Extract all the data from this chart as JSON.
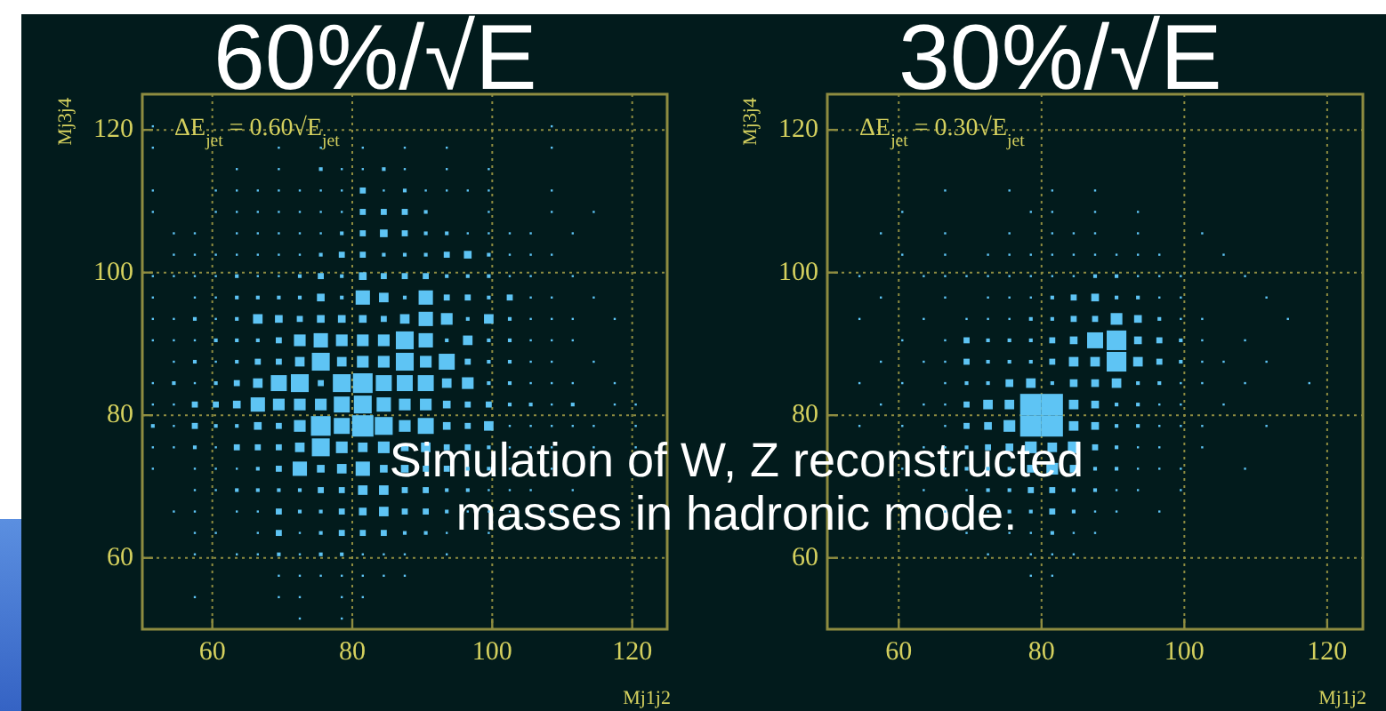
{
  "chart_data": [
    {
      "type": "bubble",
      "title": "60%/√E",
      "annotations": [
        "ΔE$_{jet}$ = 0.60√E$_{jet}$",
        "Simulation of W, Z reconstructed masses in hadronic mode."
      ],
      "xlabel": "Mj1j2",
      "ylabel": "Mj3j4",
      "xlim": [
        50,
        125
      ],
      "ylim": [
        50,
        125
      ],
      "xticks": [
        60,
        80,
        100,
        120
      ],
      "yticks": [
        60,
        80,
        100,
        120
      ],
      "grid": true,
      "marker": "square",
      "series": [
        {
          "color": "#5ec4f4",
          "x": [
            51.5,
            108.5,
            51.5,
            69.5,
            75.5,
            81.5,
            87.5,
            93.5,
            108.5,
            63.5,
            69.5,
            75.5,
            78.5,
            81.5,
            84.5,
            87.5,
            93.5,
            99.5,
            51.5,
            60.5,
            63.5,
            66.5,
            69.5,
            72.5,
            75.5,
            78.5,
            81.5,
            84.5,
            87.5,
            90.5,
            93.5,
            96.5,
            99.5,
            108.5,
            51.5,
            60.5,
            63.5,
            66.5,
            69.5,
            72.5,
            75.5,
            78.5,
            81.5,
            84.5,
            87.5,
            90.5,
            99.5,
            108.5,
            114.5,
            54.5,
            57.5,
            63.5,
            66.5,
            69.5,
            72.5,
            75.5,
            78.5,
            81.5,
            84.5,
            87.5,
            90.5,
            93.5,
            96.5,
            99.5,
            102.5,
            105.5,
            111.5,
            54.5,
            57.5,
            60.5,
            63.5,
            66.5,
            69.5,
            72.5,
            75.5,
            78.5,
            81.5,
            84.5,
            87.5,
            90.5,
            93.5,
            96.5,
            99.5,
            102.5,
            105.5,
            108.5,
            51.5,
            54.5,
            57.5,
            60.5,
            63.5,
            66.5,
            69.5,
            72.5,
            75.5,
            78.5,
            81.5,
            84.5,
            87.5,
            90.5,
            93.5,
            96.5,
            99.5,
            102.5,
            105.5,
            111.5,
            51.5,
            57.5,
            60.5,
            63.5,
            66.5,
            69.5,
            72.5,
            75.5,
            78.5,
            81.5,
            84.5,
            87.5,
            90.5,
            93.5,
            96.5,
            99.5,
            102.5,
            105.5,
            108.5,
            114.5,
            51.5,
            54.5,
            57.5,
            60.5,
            63.5,
            66.5,
            69.5,
            72.5,
            75.5,
            78.5,
            81.5,
            84.5,
            87.5,
            90.5,
            93.5,
            96.5,
            99.5,
            102.5,
            105.5,
            108.5,
            111.5,
            117.5,
            51.5,
            54.5,
            57.5,
            60.5,
            63.5,
            66.5,
            69.5,
            72.5,
            75.5,
            78.5,
            81.5,
            84.5,
            87.5,
            90.5,
            93.5,
            96.5,
            99.5,
            102.5,
            105.5,
            108.5,
            111.5,
            54.5,
            57.5,
            60.5,
            63.5,
            66.5,
            69.5,
            72.5,
            75.5,
            78.5,
            81.5,
            84.5,
            87.5,
            90.5,
            93.5,
            96.5,
            99.5,
            102.5,
            105.5,
            108.5,
            114.5,
            51.5,
            54.5,
            57.5,
            60.5,
            63.5,
            66.5,
            69.5,
            72.5,
            75.5,
            78.5,
            81.5,
            84.5,
            87.5,
            90.5,
            93.5,
            96.5,
            99.5,
            102.5,
            105.5,
            108.5,
            111.5,
            117.5,
            51.5,
            54.5,
            57.5,
            60.5,
            63.5,
            66.5,
            69.5,
            72.5,
            75.5,
            78.5,
            81.5,
            84.5,
            87.5,
            90.5,
            93.5,
            96.5,
            99.5,
            102.5,
            105.5,
            108.5,
            111.5,
            117.5,
            120.5,
            51.5,
            54.5,
            57.5,
            60.5,
            63.5,
            66.5,
            69.5,
            72.5,
            75.5,
            78.5,
            81.5,
            84.5,
            87.5,
            90.5,
            93.5,
            96.5,
            99.5,
            102.5,
            105.5,
            108.5,
            111.5,
            114.5,
            120.5,
            51.5,
            54.5,
            57.5,
            60.5,
            63.5,
            66.5,
            69.5,
            72.5,
            75.5,
            78.5,
            81.5,
            84.5,
            87.5,
            90.5,
            93.5,
            96.5,
            99.5,
            102.5,
            105.5,
            108.5,
            114.5,
            120.5,
            51.5,
            57.5,
            60.5,
            63.5,
            66.5,
            69.5,
            72.5,
            75.5,
            78.5,
            81.5,
            84.5,
            87.5,
            90.5,
            93.5,
            96.5,
            99.5,
            102.5,
            108.5,
            57.5,
            60.5,
            63.5,
            66.5,
            69.5,
            72.5,
            75.5,
            78.5,
            81.5,
            84.5,
            87.5,
            90.5,
            93.5,
            96.5,
            99.5,
            102.5,
            105.5,
            111.5,
            54.5,
            57.5,
            63.5,
            66.5,
            69.5,
            72.5,
            75.5,
            78.5,
            81.5,
            84.5,
            87.5,
            90.5,
            93.5,
            96.5,
            99.5,
            102.5,
            108.5,
            57.5,
            60.5,
            66.5,
            69.5,
            72.5,
            75.5,
            78.5,
            81.5,
            84.5,
            87.5,
            90.5,
            93.5,
            99.5,
            57.5,
            63.5,
            66.5,
            69.5,
            72.5,
            75.5,
            78.5,
            81.5,
            84.5,
            87.5,
            93.5,
            69.5,
            72.5,
            75.5,
            78.5,
            81.5,
            84.5,
            87.5,
            57.5,
            69.5,
            72.5,
            78.5,
            81.5,
            72.5,
            78.5
          ],
          "values": [
            120.5,
            120.5,
            117.5,
            117.5,
            117.5,
            117.5,
            117.5,
            117.5,
            117.5,
            114.5,
            114.5,
            114.5,
            114.5,
            114.5,
            114.5,
            114.5,
            114.5,
            114.5,
            111.5,
            111.5,
            111.5,
            111.5,
            111.5,
            111.5,
            111.5,
            111.5,
            111.5,
            111.5,
            111.5,
            111.5,
            111.5,
            111.5,
            111.5,
            111.5,
            108.5,
            108.5,
            108.5,
            108.5,
            108.5,
            108.5,
            108.5,
            108.5,
            108.5,
            108.5,
            108.5,
            108.5,
            108.5,
            108.5,
            108.5,
            105.5,
            105.5,
            105.5,
            105.5,
            105.5,
            105.5,
            105.5,
            105.5,
            105.5,
            105.5,
            105.5,
            105.5,
            105.5,
            105.5,
            105.5,
            105.5,
            105.5,
            105.5,
            102.5,
            102.5,
            102.5,
            102.5,
            102.5,
            102.5,
            102.5,
            102.5,
            102.5,
            102.5,
            102.5,
            102.5,
            102.5,
            102.5,
            102.5,
            102.5,
            102.5,
            102.5,
            102.5,
            99.5,
            99.5,
            99.5,
            99.5,
            99.5,
            99.5,
            99.5,
            99.5,
            99.5,
            99.5,
            99.5,
            99.5,
            99.5,
            99.5,
            99.5,
            99.5,
            99.5,
            99.5,
            99.5,
            99.5,
            96.5,
            96.5,
            96.5,
            96.5,
            96.5,
            96.5,
            96.5,
            96.5,
            96.5,
            96.5,
            96.5,
            96.5,
            96.5,
            96.5,
            96.5,
            96.5,
            96.5,
            96.5,
            96.5,
            96.5,
            93.5,
            93.5,
            93.5,
            93.5,
            93.5,
            93.5,
            93.5,
            93.5,
            93.5,
            93.5,
            93.5,
            93.5,
            93.5,
            93.5,
            93.5,
            93.5,
            93.5,
            93.5,
            93.5,
            93.5,
            93.5,
            93.5,
            90.5,
            90.5,
            90.5,
            90.5,
            90.5,
            90.5,
            90.5,
            90.5,
            90.5,
            90.5,
            90.5,
            90.5,
            90.5,
            90.5,
            90.5,
            90.5,
            90.5,
            90.5,
            90.5,
            90.5,
            90.5,
            87.5,
            87.5,
            87.5,
            87.5,
            87.5,
            87.5,
            87.5,
            87.5,
            87.5,
            87.5,
            87.5,
            87.5,
            87.5,
            87.5,
            87.5,
            87.5,
            87.5,
            87.5,
            87.5,
            87.5,
            84.5,
            84.5,
            84.5,
            84.5,
            84.5,
            84.5,
            84.5,
            84.5,
            84.5,
            84.5,
            84.5,
            84.5,
            84.5,
            84.5,
            84.5,
            84.5,
            84.5,
            84.5,
            84.5,
            84.5,
            84.5,
            84.5,
            81.5,
            81.5,
            81.5,
            81.5,
            81.5,
            81.5,
            81.5,
            81.5,
            81.5,
            81.5,
            81.5,
            81.5,
            81.5,
            81.5,
            81.5,
            81.5,
            81.5,
            81.5,
            81.5,
            81.5,
            81.5,
            81.5,
            81.5,
            78.5,
            78.5,
            78.5,
            78.5,
            78.5,
            78.5,
            78.5,
            78.5,
            78.5,
            78.5,
            78.5,
            78.5,
            78.5,
            78.5,
            78.5,
            78.5,
            78.5,
            78.5,
            78.5,
            78.5,
            78.5,
            78.5,
            78.5,
            75.5,
            75.5,
            75.5,
            75.5,
            75.5,
            75.5,
            75.5,
            75.5,
            75.5,
            75.5,
            75.5,
            75.5,
            75.5,
            75.5,
            75.5,
            75.5,
            75.5,
            75.5,
            75.5,
            75.5,
            75.5,
            75.5,
            72.5,
            72.5,
            72.5,
            72.5,
            72.5,
            72.5,
            72.5,
            72.5,
            72.5,
            72.5,
            72.5,
            72.5,
            72.5,
            72.5,
            72.5,
            72.5,
            72.5,
            72.5,
            69.5,
            69.5,
            69.5,
            69.5,
            69.5,
            69.5,
            69.5,
            69.5,
            69.5,
            69.5,
            69.5,
            69.5,
            69.5,
            69.5,
            69.5,
            69.5,
            69.5,
            69.5,
            66.5,
            66.5,
            66.5,
            66.5,
            66.5,
            66.5,
            66.5,
            66.5,
            66.5,
            66.5,
            66.5,
            66.5,
            66.5,
            66.5,
            66.5,
            66.5,
            66.5,
            63.5,
            63.5,
            63.5,
            63.5,
            63.5,
            63.5,
            63.5,
            63.5,
            63.5,
            63.5,
            63.5,
            63.5,
            63.5,
            60.5,
            60.5,
            60.5,
            60.5,
            60.5,
            60.5,
            60.5,
            60.5,
            60.5,
            60.5,
            60.5,
            57.5,
            57.5,
            57.5,
            57.5,
            57.5,
            57.5,
            57.5,
            54.5,
            54.5,
            54.5,
            54.5,
            54.5,
            51.5,
            51.5
          ],
          "sizes": [
            0.01,
            0.01,
            0.01,
            0.01,
            0.01,
            0.01,
            0.01,
            0.01,
            0.01,
            0.01,
            0.01,
            0.03,
            0.01,
            0.01,
            0.03,
            0.01,
            0.01,
            0.01,
            0.01,
            0.01,
            0.01,
            0.01,
            0.01,
            0.01,
            0.01,
            0.01,
            0.08,
            0.01,
            0.03,
            0.01,
            0.01,
            0.01,
            0.01,
            0.01,
            0.01,
            0.01,
            0.01,
            0.01,
            0.01,
            0.01,
            0.01,
            0.01,
            0.08,
            0.08,
            0.08,
            0.03,
            0.01,
            0.01,
            0.01,
            0.01,
            0.01,
            0.01,
            0.01,
            0.01,
            0.01,
            0.01,
            0.03,
            0.08,
            0.13,
            0.08,
            0.03,
            0.03,
            0.01,
            0.01,
            0.01,
            0.01,
            0.01,
            0.01,
            0.01,
            0.01,
            0.01,
            0.01,
            0.01,
            0.01,
            0.03,
            0.08,
            0.08,
            0.03,
            0.03,
            0.03,
            0.08,
            0.13,
            0.03,
            0.01,
            0.01,
            0.01,
            0.01,
            0.01,
            0.01,
            0.01,
            0.03,
            0.01,
            0.01,
            0.03,
            0.08,
            0.03,
            0.13,
            0.08,
            0.08,
            0.08,
            0.03,
            0.03,
            0.03,
            0.01,
            0.01,
            0.01,
            0.01,
            0.01,
            0.01,
            0.03,
            0.03,
            0.03,
            0.03,
            0.13,
            0.03,
            0.45,
            0.2,
            0.03,
            0.45,
            0.08,
            0.08,
            0.03,
            0.08,
            0.01,
            0.01,
            0.01,
            0.01,
            0.01,
            0.03,
            0.01,
            0.03,
            0.2,
            0.13,
            0.08,
            0.13,
            0.13,
            0.13,
            0.08,
            0.2,
            0.45,
            0.3,
            0.03,
            0.2,
            0.03,
            0.01,
            0.01,
            0.01,
            0.01,
            0.01,
            0.01,
            0.01,
            0.03,
            0.03,
            0.03,
            0.08,
            0.3,
            0.45,
            0.3,
            0.3,
            0.3,
            0.7,
            0.45,
            0.03,
            0.2,
            0.03,
            0.03,
            0.01,
            0.01,
            0.01,
            0.01,
            0.03,
            0.01,
            0.03,
            0.08,
            0.08,
            0.2,
            0.7,
            0.2,
            0.3,
            0.3,
            0.7,
            0.3,
            0.56,
            0.08,
            0.03,
            0.03,
            0.01,
            0.01,
            0.01,
            0.01,
            0.03,
            0.01,
            0.03,
            0.08,
            0.2,
            0.56,
            0.7,
            0.08,
            0.7,
            0.85,
            0.56,
            0.56,
            0.56,
            0.2,
            0.3,
            0.03,
            0.03,
            0.01,
            0.01,
            0.01,
            0.01,
            0.01,
            0.01,
            0.08,
            0.08,
            0.13,
            0.45,
            0.3,
            0.3,
            0.3,
            0.56,
            0.7,
            0.45,
            0.3,
            0.3,
            0.13,
            0.08,
            0.08,
            0.03,
            0.03,
            0.01,
            0.03,
            0.01,
            0.01,
            0.03,
            0.01,
            0.08,
            0.03,
            0.03,
            0.13,
            0.08,
            0.3,
            0.85,
            0.56,
            1,
            0.7,
            0.3,
            0.56,
            0.13,
            0.08,
            0.2,
            0.01,
            0.01,
            0.01,
            0.01,
            0.01,
            0.01,
            0.01,
            0.01,
            0.03,
            0.01,
            0.08,
            0.08,
            0.08,
            0.2,
            0.7,
            0.3,
            0.2,
            0.3,
            0.13,
            0.2,
            0.08,
            0.08,
            0.03,
            0.01,
            0.01,
            0.01,
            0.01,
            0.01,
            0.01,
            0.01,
            0.01,
            0.01,
            0.03,
            0.08,
            0.45,
            0.13,
            0.2,
            0.45,
            0.13,
            0.13,
            0.08,
            0.08,
            0.03,
            0.03,
            0.01,
            0.01,
            0.01,
            0.01,
            0.03,
            0.03,
            0.03,
            0.03,
            0.08,
            0.08,
            0.2,
            0.2,
            0.08,
            0.08,
            0.03,
            0.03,
            0.01,
            0.01,
            0.01,
            0.01,
            0.01,
            0.01,
            0.01,
            0.01,
            0.08,
            0.03,
            0.03,
            0.08,
            0.13,
            0.2,
            0.08,
            0.08,
            0.03,
            0.01,
            0.01,
            0.01,
            0.01,
            0.01,
            0.01,
            0.01,
            0.08,
            0.01,
            0.03,
            0.08,
            0.08,
            0.08,
            0.03,
            0.03,
            0.01,
            0.01,
            0.01,
            0.01,
            0.01,
            0.03,
            0.01,
            0.03,
            0.03,
            0.01,
            0.01,
            0.01,
            0.01,
            0.01,
            0.01,
            0.01,
            0.01,
            0.01,
            0.01,
            0.01,
            0.01,
            0.01,
            0.01,
            0.01,
            0.01,
            0.01,
            0.01
          ]
        }
      ]
    },
    {
      "type": "bubble",
      "title": "30%/√E",
      "annotations": [
        "ΔE$_{jet}$ = 0.30√E$_{jet}$"
      ],
      "xlabel": "Mj1j2",
      "ylabel": "Mj3j4",
      "xlim": [
        50,
        125
      ],
      "ylim": [
        50,
        125
      ],
      "xticks": [
        60,
        80,
        100,
        120
      ],
      "yticks": [
        60,
        80,
        100,
        120
      ],
      "grid": true,
      "marker": "square",
      "series": [
        {
          "color": "#5ec4f4",
          "x": [
            66.5,
            75.5,
            81.5,
            87.5,
            60.5,
            78.5,
            81.5,
            87.5,
            93.5,
            57.5,
            66.5,
            75.5,
            81.5,
            84.5,
            87.5,
            93.5,
            102.5,
            60.5,
            66.5,
            72.5,
            75.5,
            78.5,
            81.5,
            84.5,
            87.5,
            90.5,
            93.5,
            96.5,
            105.5,
            54.5,
            63.5,
            66.5,
            69.5,
            72.5,
            75.5,
            78.5,
            81.5,
            84.5,
            87.5,
            90.5,
            93.5,
            96.5,
            99.5,
            108.5,
            57.5,
            66.5,
            72.5,
            75.5,
            78.5,
            81.5,
            84.5,
            87.5,
            90.5,
            93.5,
            96.5,
            99.5,
            111.5,
            54.5,
            63.5,
            69.5,
            72.5,
            75.5,
            78.5,
            81.5,
            84.5,
            87.5,
            90.5,
            93.5,
            96.5,
            99.5,
            102.5,
            114.5,
            60.5,
            66.5,
            69.5,
            72.5,
            75.5,
            78.5,
            81.5,
            84.5,
            87.5,
            90.5,
            93.5,
            96.5,
            99.5,
            102.5,
            108.5,
            57.5,
            63.5,
            66.5,
            69.5,
            72.5,
            75.5,
            78.5,
            81.5,
            84.5,
            87.5,
            90.5,
            93.5,
            96.5,
            99.5,
            102.5,
            105.5,
            111.5,
            54.5,
            60.5,
            66.5,
            69.5,
            72.5,
            75.5,
            78.5,
            81.5,
            84.5,
            87.5,
            90.5,
            93.5,
            96.5,
            99.5,
            102.5,
            108.5,
            117.5,
            57.5,
            63.5,
            66.5,
            69.5,
            72.5,
            75.5,
            78.5,
            81.5,
            84.5,
            87.5,
            90.5,
            93.5,
            96.5,
            99.5,
            105.5,
            54.5,
            60.5,
            66.5,
            69.5,
            72.5,
            75.5,
            78.5,
            81.5,
            84.5,
            87.5,
            90.5,
            93.5,
            96.5,
            99.5,
            102.5,
            111.5,
            63.5,
            66.5,
            69.5,
            72.5,
            75.5,
            78.5,
            81.5,
            84.5,
            87.5,
            90.5,
            93.5,
            96.5,
            102.5,
            60.5,
            66.5,
            69.5,
            72.5,
            75.5,
            78.5,
            81.5,
            84.5,
            87.5,
            90.5,
            93.5,
            96.5,
            99.5,
            108.5,
            63.5,
            69.5,
            72.5,
            75.5,
            78.5,
            81.5,
            84.5,
            87.5,
            90.5,
            93.5,
            99.5,
            66.5,
            72.5,
            75.5,
            78.5,
            81.5,
            84.5,
            87.5,
            90.5,
            96.5,
            69.5,
            75.5,
            78.5,
            81.5,
            84.5,
            87.5,
            72.5,
            78.5,
            81.5,
            84.5,
            78.5,
            81.5
          ],
          "values": [
            111.5,
            111.5,
            111.5,
            111.5,
            108.5,
            108.5,
            108.5,
            108.5,
            108.5,
            105.5,
            105.5,
            105.5,
            105.5,
            105.5,
            105.5,
            105.5,
            105.5,
            102.5,
            102.5,
            102.5,
            102.5,
            102.5,
            102.5,
            102.5,
            102.5,
            102.5,
            102.5,
            102.5,
            102.5,
            99.5,
            99.5,
            99.5,
            99.5,
            99.5,
            99.5,
            99.5,
            99.5,
            99.5,
            99.5,
            99.5,
            99.5,
            99.5,
            99.5,
            99.5,
            96.5,
            96.5,
            96.5,
            96.5,
            96.5,
            96.5,
            96.5,
            96.5,
            96.5,
            96.5,
            96.5,
            96.5,
            96.5,
            93.5,
            93.5,
            93.5,
            93.5,
            93.5,
            93.5,
            93.5,
            93.5,
            93.5,
            93.5,
            93.5,
            93.5,
            93.5,
            93.5,
            93.5,
            90.5,
            90.5,
            90.5,
            90.5,
            90.5,
            90.5,
            90.5,
            90.5,
            90.5,
            90.5,
            90.5,
            90.5,
            90.5,
            90.5,
            90.5,
            87.5,
            87.5,
            87.5,
            87.5,
            87.5,
            87.5,
            87.5,
            87.5,
            87.5,
            87.5,
            87.5,
            87.5,
            87.5,
            87.5,
            87.5,
            87.5,
            87.5,
            84.5,
            84.5,
            84.5,
            84.5,
            84.5,
            84.5,
            84.5,
            84.5,
            84.5,
            84.5,
            84.5,
            84.5,
            84.5,
            84.5,
            84.5,
            84.5,
            84.5,
            81.5,
            81.5,
            81.5,
            81.5,
            81.5,
            81.5,
            81.5,
            81.5,
            81.5,
            81.5,
            81.5,
            81.5,
            81.5,
            81.5,
            81.5,
            78.5,
            78.5,
            78.5,
            78.5,
            78.5,
            78.5,
            78.5,
            78.5,
            78.5,
            78.5,
            78.5,
            78.5,
            78.5,
            78.5,
            78.5,
            78.5,
            75.5,
            75.5,
            75.5,
            75.5,
            75.5,
            75.5,
            75.5,
            75.5,
            75.5,
            75.5,
            75.5,
            75.5,
            75.5,
            72.5,
            72.5,
            72.5,
            72.5,
            72.5,
            72.5,
            72.5,
            72.5,
            72.5,
            72.5,
            72.5,
            72.5,
            72.5,
            72.5,
            69.5,
            69.5,
            69.5,
            69.5,
            69.5,
            69.5,
            69.5,
            69.5,
            69.5,
            69.5,
            69.5,
            66.5,
            66.5,
            66.5,
            66.5,
            66.5,
            66.5,
            66.5,
            66.5,
            66.5,
            63.5,
            63.5,
            63.5,
            63.5,
            63.5,
            63.5,
            60.5,
            60.5,
            60.5,
            60.5,
            57.5,
            57.5
          ],
          "sizes": [
            0.01,
            0.01,
            0.01,
            0.01,
            0.01,
            0.01,
            0.01,
            0.01,
            0.01,
            0.01,
            0.01,
            0.01,
            0.01,
            0.01,
            0.01,
            0.01,
            0.01,
            0.01,
            0.01,
            0.01,
            0.01,
            0.01,
            0.01,
            0.01,
            0.01,
            0.01,
            0.01,
            0.01,
            0.01,
            0.01,
            0.01,
            0.01,
            0.01,
            0.01,
            0.01,
            0.01,
            0.01,
            0.01,
            0.03,
            0.03,
            0.01,
            0.01,
            0.01,
            0.01,
            0.01,
            0.01,
            0.01,
            0.01,
            0.01,
            0.03,
            0.08,
            0.13,
            0.03,
            0.03,
            0.01,
            0.01,
            0.01,
            0.01,
            0.01,
            0.01,
            0.01,
            0.01,
            0.03,
            0.03,
            0.08,
            0.08,
            0.3,
            0.13,
            0.03,
            0.01,
            0.01,
            0.01,
            0.01,
            0.01,
            0.08,
            0.03,
            0.03,
            0.03,
            0.08,
            0.13,
            0.56,
            0.85,
            0.13,
            0.08,
            0.03,
            0.01,
            0.01,
            0.01,
            0.01,
            0.01,
            0.08,
            0.03,
            0.03,
            0.03,
            0.08,
            0.2,
            0.2,
            0.85,
            0.2,
            0.08,
            0.03,
            0.01,
            0.01,
            0.01,
            0.01,
            0.01,
            0.01,
            0.03,
            0.03,
            0.13,
            0.2,
            0.03,
            0.13,
            0.13,
            0.2,
            0.03,
            0.03,
            0.01,
            0.01,
            0.01,
            0.01,
            0.01,
            0.01,
            0.01,
            0.08,
            0.2,
            0.2,
            1,
            1,
            0.2,
            0.13,
            0.03,
            0.03,
            0.01,
            0.01,
            0.01,
            0.01,
            0.01,
            0.01,
            0.08,
            0.13,
            0.3,
            1,
            1,
            0.2,
            0.13,
            0.03,
            0.03,
            0.01,
            0.01,
            0.01,
            0.01,
            0.01,
            0.01,
            0.03,
            0.08,
            0.13,
            0.3,
            0.2,
            0.3,
            0.08,
            0.03,
            0.01,
            0.01,
            0.01,
            0.01,
            0.01,
            0.03,
            0.03,
            0.03,
            0.13,
            0.3,
            0.13,
            0.03,
            0.03,
            0.01,
            0.01,
            0.01,
            0.01,
            0.01,
            0.01,
            0.03,
            0.03,
            0.08,
            0.08,
            0.03,
            0.03,
            0.01,
            0.01,
            0.01,
            0.01,
            0.01,
            0.03,
            0.03,
            0.08,
            0.03,
            0.01,
            0.01,
            0.01,
            0.01,
            0.01,
            0.01,
            0.03,
            0.01,
            0.01,
            0.01,
            0.01,
            0.01,
            0.01,
            0.01,
            0.01
          ]
        }
      ]
    }
  ]
}
